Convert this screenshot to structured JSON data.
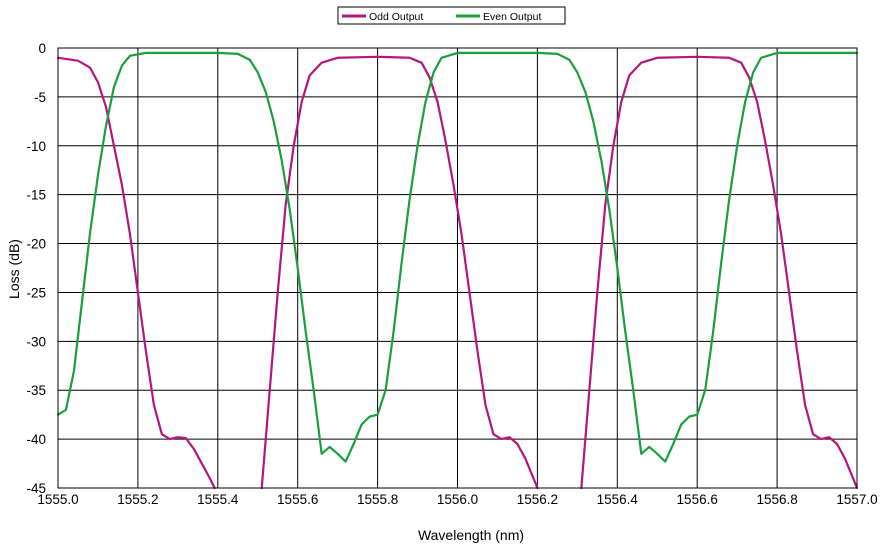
{
  "chart_data": {
    "type": "line",
    "title": "",
    "xlabel": "Wavelength (nm)",
    "ylabel": "Loss (dB)",
    "xlim": [
      1555.0,
      1557.0
    ],
    "ylim": [
      -45,
      0
    ],
    "x_ticks": [
      "1555.0",
      "1555.2",
      "1555.4",
      "1555.6",
      "1555.8",
      "1556.0",
      "1556.2",
      "1556.4",
      "1556.6",
      "1556.8",
      "1557.0"
    ],
    "y_ticks": [
      "0",
      "-5",
      "-10",
      "-15",
      "-20",
      "-25",
      "-30",
      "-35",
      "-40",
      "-45"
    ],
    "grid": true,
    "legend_position": "top-center",
    "series": [
      {
        "name": "Odd Output",
        "color": "#b5157e",
        "segments": [
          [
            [
              1555.0,
              -1.0
            ],
            [
              1555.05,
              -1.3
            ],
            [
              1555.08,
              -2.0
            ],
            [
              1555.1,
              -3.5
            ],
            [
              1555.12,
              -6.0
            ],
            [
              1555.14,
              -10.0
            ],
            [
              1555.16,
              -14.0
            ],
            [
              1555.18,
              -19.0
            ],
            [
              1555.2,
              -25.0
            ],
            [
              1555.22,
              -31.0
            ],
            [
              1555.24,
              -36.5
            ],
            [
              1555.26,
              -39.5
            ],
            [
              1555.28,
              -40.0
            ],
            [
              1555.3,
              -39.8
            ],
            [
              1555.32,
              -39.9
            ],
            [
              1555.34,
              -41.0
            ],
            [
              1555.36,
              -42.5
            ],
            [
              1555.38,
              -44.0
            ],
            [
              1555.392,
              -45.0
            ]
          ],
          [
            [
              1555.51,
              -45.0
            ],
            [
              1555.53,
              -35.0
            ],
            [
              1555.55,
              -25.0
            ],
            [
              1555.57,
              -16.0
            ],
            [
              1555.59,
              -10.0
            ],
            [
              1555.61,
              -5.5
            ],
            [
              1555.63,
              -2.8
            ],
            [
              1555.66,
              -1.5
            ],
            [
              1555.7,
              -1.0
            ],
            [
              1555.8,
              -0.9
            ],
            [
              1555.88,
              -1.0
            ],
            [
              1555.91,
              -1.5
            ],
            [
              1555.93,
              -3.0
            ],
            [
              1555.95,
              -5.5
            ],
            [
              1555.97,
              -9.5
            ],
            [
              1555.99,
              -14.0
            ],
            [
              1556.01,
              -19.0
            ],
            [
              1556.03,
              -25.0
            ],
            [
              1556.05,
              -31.0
            ],
            [
              1556.07,
              -36.5
            ],
            [
              1556.09,
              -39.5
            ],
            [
              1556.11,
              -40.0
            ],
            [
              1556.13,
              -39.8
            ],
            [
              1556.15,
              -40.5
            ],
            [
              1556.17,
              -42.0
            ],
            [
              1556.19,
              -44.0
            ],
            [
              1556.2,
              -45.0
            ]
          ],
          [
            [
              1556.31,
              -45.0
            ],
            [
              1556.33,
              -35.0
            ],
            [
              1556.35,
              -25.0
            ],
            [
              1556.37,
              -16.0
            ],
            [
              1556.39,
              -10.0
            ],
            [
              1556.41,
              -5.5
            ],
            [
              1556.43,
              -2.8
            ],
            [
              1556.46,
              -1.5
            ],
            [
              1556.5,
              -1.0
            ],
            [
              1556.6,
              -0.9
            ],
            [
              1556.68,
              -1.0
            ],
            [
              1556.71,
              -1.5
            ],
            [
              1556.73,
              -3.0
            ],
            [
              1556.75,
              -5.5
            ],
            [
              1556.77,
              -9.5
            ],
            [
              1556.79,
              -14.0
            ],
            [
              1556.81,
              -19.0
            ],
            [
              1556.83,
              -25.0
            ],
            [
              1556.85,
              -31.0
            ],
            [
              1556.87,
              -36.5
            ],
            [
              1556.89,
              -39.5
            ],
            [
              1556.91,
              -40.0
            ],
            [
              1556.93,
              -39.8
            ],
            [
              1556.95,
              -40.5
            ],
            [
              1556.97,
              -42.0
            ],
            [
              1556.99,
              -44.0
            ],
            [
              1557.0,
              -45.0
            ]
          ]
        ]
      },
      {
        "name": "Even Output",
        "color": "#19a03c",
        "segments": [
          [
            [
              1555.0,
              -37.5
            ],
            [
              1555.02,
              -37.0
            ],
            [
              1555.04,
              -33.0
            ],
            [
              1555.06,
              -26.0
            ],
            [
              1555.08,
              -19.0
            ],
            [
              1555.1,
              -13.0
            ],
            [
              1555.12,
              -8.0
            ],
            [
              1555.14,
              -4.0
            ],
            [
              1555.16,
              -1.8
            ],
            [
              1555.18,
              -0.8
            ],
            [
              1555.22,
              -0.5
            ],
            [
              1555.4,
              -0.5
            ],
            [
              1555.45,
              -0.6
            ],
            [
              1555.48,
              -1.2
            ],
            [
              1555.5,
              -2.5
            ],
            [
              1555.52,
              -4.5
            ],
            [
              1555.54,
              -7.5
            ],
            [
              1555.56,
              -11.5
            ],
            [
              1555.58,
              -16.5
            ],
            [
              1555.6,
              -22.5
            ],
            [
              1555.62,
              -29.0
            ],
            [
              1555.64,
              -35.0
            ],
            [
              1555.66,
              -41.5
            ],
            [
              1555.68,
              -40.8
            ],
            [
              1555.7,
              -41.5
            ],
            [
              1555.72,
              -42.3
            ],
            [
              1555.74,
              -40.5
            ],
            [
              1555.76,
              -38.5
            ],
            [
              1555.78,
              -37.7
            ],
            [
              1555.8,
              -37.5
            ],
            [
              1555.82,
              -35.0
            ],
            [
              1555.84,
              -29.0
            ],
            [
              1555.86,
              -22.0
            ],
            [
              1555.88,
              -15.5
            ],
            [
              1555.9,
              -10.0
            ],
            [
              1555.92,
              -5.5
            ],
            [
              1555.94,
              -2.5
            ],
            [
              1555.96,
              -1.0
            ],
            [
              1556.0,
              -0.5
            ],
            [
              1556.2,
              -0.5
            ],
            [
              1556.25,
              -0.6
            ],
            [
              1556.28,
              -1.2
            ],
            [
              1556.3,
              -2.5
            ],
            [
              1556.32,
              -4.5
            ],
            [
              1556.34,
              -7.5
            ],
            [
              1556.36,
              -11.5
            ],
            [
              1556.38,
              -16.5
            ],
            [
              1556.4,
              -22.5
            ],
            [
              1556.42,
              -29.0
            ],
            [
              1556.44,
              -35.0
            ],
            [
              1556.46,
              -41.5
            ],
            [
              1556.48,
              -40.8
            ],
            [
              1556.5,
              -41.5
            ],
            [
              1556.52,
              -42.3
            ],
            [
              1556.54,
              -40.5
            ],
            [
              1556.56,
              -38.5
            ],
            [
              1556.58,
              -37.7
            ],
            [
              1556.6,
              -37.5
            ],
            [
              1556.62,
              -35.0
            ],
            [
              1556.64,
              -29.0
            ],
            [
              1556.66,
              -22.0
            ],
            [
              1556.68,
              -15.5
            ],
            [
              1556.7,
              -10.0
            ],
            [
              1556.72,
              -5.5
            ],
            [
              1556.74,
              -2.5
            ],
            [
              1556.76,
              -1.0
            ],
            [
              1556.8,
              -0.5
            ],
            [
              1557.0,
              -0.5
            ]
          ]
        ]
      }
    ]
  }
}
